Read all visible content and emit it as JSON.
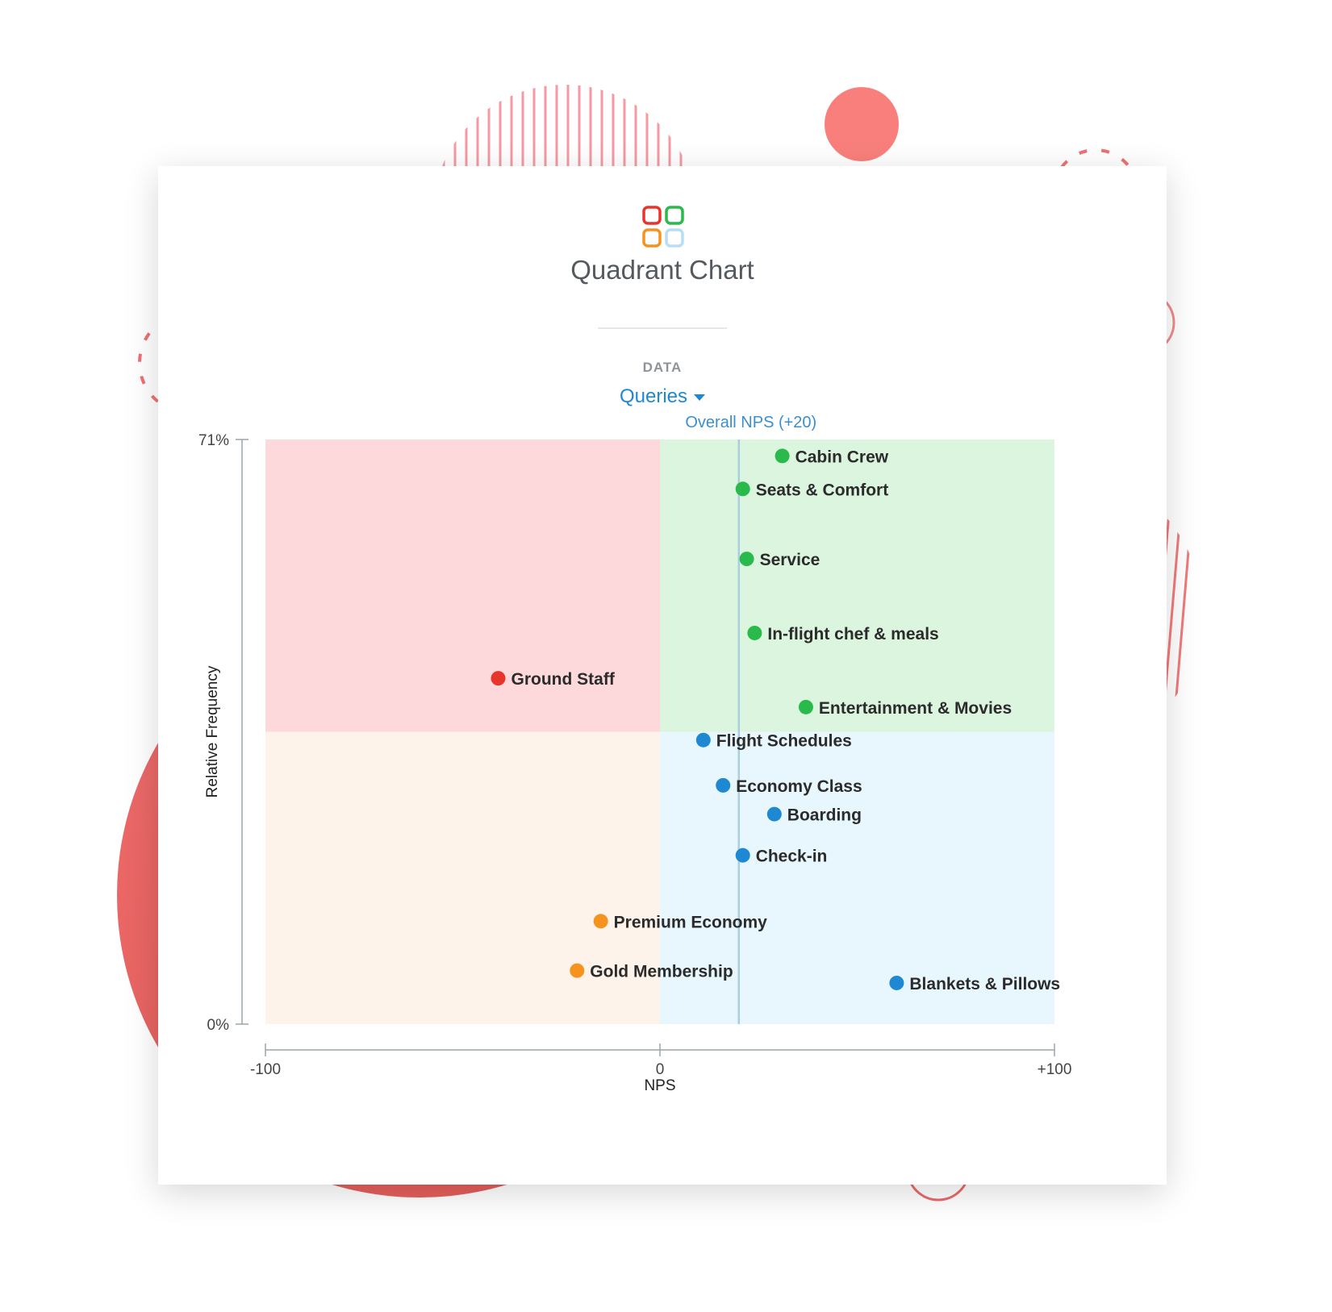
{
  "header": {
    "title": "Quadrant Chart",
    "data_label": "DATA",
    "dropdown_value": "Queries"
  },
  "colors": {
    "positive": "#2ab94b",
    "negative": "#e8352c",
    "neutral": "#1e88d2",
    "warning": "#f6931f",
    "quadrant_top_left": "#fdd9db",
    "quadrant_top_right": "#dcf5df",
    "quadrant_bottom_left": "#fdf3ea",
    "quadrant_bottom_right": "#e8f6fd",
    "reference_line": "#a8cfe0"
  },
  "chart_data": {
    "type": "scatter",
    "xlabel": "NPS",
    "ylabel": "Relative Frequency",
    "xlim": [
      -100,
      100
    ],
    "ylim": [
      0,
      71
    ],
    "x_ticks": [
      {
        "value": -100,
        "label": "-100"
      },
      {
        "value": 0,
        "label": "0"
      },
      {
        "value": 100,
        "label": "+100"
      }
    ],
    "y_ticks": [
      {
        "value": 71,
        "label": "71%"
      },
      {
        "value": 0,
        "label": "0%"
      }
    ],
    "quadrant_split": {
      "x": 0,
      "y": 35.5
    },
    "reference_line": {
      "x": 20,
      "label": "Overall NPS (+20)"
    },
    "points": [
      {
        "label": "Cabin Crew",
        "x": 31,
        "y": 69,
        "color": "#2ab94b"
      },
      {
        "label": "Seats & Comfort",
        "x": 21,
        "y": 65,
        "color": "#2ab94b"
      },
      {
        "label": "Service",
        "x": 22,
        "y": 56.5,
        "color": "#2ab94b"
      },
      {
        "label": "In-flight chef & meals",
        "x": 24,
        "y": 47.5,
        "color": "#2ab94b"
      },
      {
        "label": "Ground Staff",
        "x": -41,
        "y": 42,
        "color": "#e8352c"
      },
      {
        "label": "Entertainment & Movies",
        "x": 37,
        "y": 38.5,
        "color": "#2ab94b"
      },
      {
        "label": "Flight Schedules",
        "x": 11,
        "y": 34.5,
        "color": "#1e88d2"
      },
      {
        "label": "Economy Class",
        "x": 16,
        "y": 29,
        "color": "#1e88d2"
      },
      {
        "label": "Boarding",
        "x": 29,
        "y": 25.5,
        "color": "#1e88d2"
      },
      {
        "label": "Check-in",
        "x": 21,
        "y": 20.5,
        "color": "#1e88d2"
      },
      {
        "label": "Premium Economy",
        "x": -15,
        "y": 12.5,
        "color": "#f6931f"
      },
      {
        "label": "Gold Membership",
        "x": -21,
        "y": 6.5,
        "color": "#f6931f"
      },
      {
        "label": "Blankets & Pillows",
        "x": 60,
        "y": 5,
        "color": "#1e88d2"
      }
    ]
  }
}
